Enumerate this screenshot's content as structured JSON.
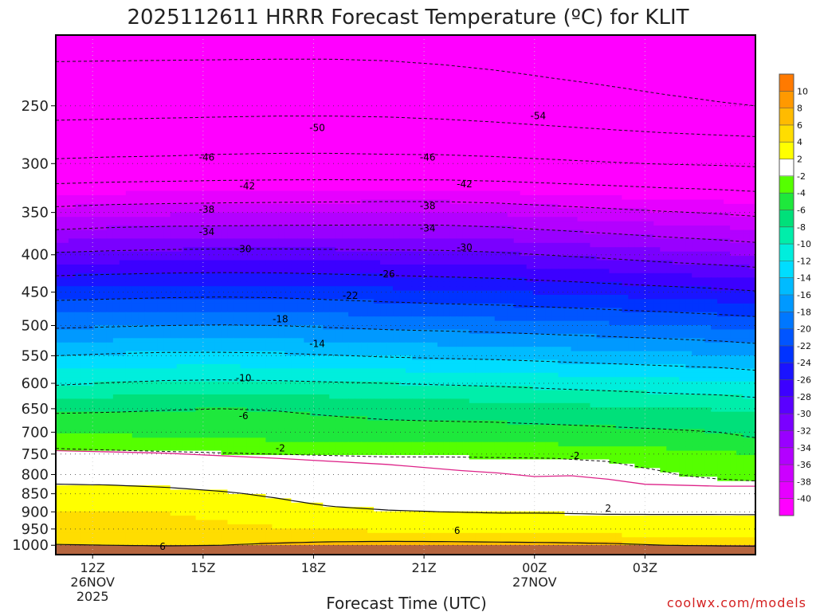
{
  "chart_data": {
    "type": "heatmap",
    "title": "2025112611 HRRR Forecast Temperature (ºC) for KLIT",
    "xlabel": "Forecast Time (UTC)",
    "ylabel": "",
    "credit": "coolwx.com/models",
    "y_scale": "log-pressure",
    "ylim": [
      1030,
      200
    ],
    "y_ticks": [
      250,
      300,
      350,
      400,
      450,
      500,
      550,
      600,
      650,
      700,
      750,
      800,
      850,
      900,
      950,
      1000
    ],
    "y_tick_labels": [
      "250",
      "300",
      "350",
      "400",
      "450",
      "500",
      "550",
      "600",
      "650",
      "700",
      "750",
      "800",
      "850",
      "900",
      "950",
      "1000"
    ],
    "xlim": [
      11,
      30
    ],
    "x_ticks": [
      {
        "t": 12,
        "label": "12Z",
        "sub": [
          "26NOV",
          "2025"
        ]
      },
      {
        "t": 15,
        "label": "15Z",
        "sub": []
      },
      {
        "t": 18,
        "label": "18Z",
        "sub": []
      },
      {
        "t": 21,
        "label": "21Z",
        "sub": []
      },
      {
        "t": 24,
        "label": "00Z",
        "sub": [
          "27NOV"
        ]
      },
      {
        "t": 27,
        "label": "03Z",
        "sub": []
      }
    ],
    "grid": true,
    "legend": "colorbar-right",
    "color_levels": [
      -40,
      -38,
      -36,
      -34,
      -32,
      -30,
      -28,
      -26,
      -24,
      -22,
      -20,
      -18,
      -16,
      -14,
      -12,
      -10,
      -8,
      -6,
      -4,
      -2,
      2,
      4,
      6,
      8,
      10
    ],
    "colorbar_labels": [
      "-40",
      "-38",
      "-36",
      "-34",
      "-32",
      "-30",
      "-28",
      "-26",
      "-24",
      "-22",
      "-20",
      "-18",
      "-16",
      "-14",
      "-12",
      "-10",
      "-8",
      "-6",
      "-4",
      "-2",
      "2",
      "4",
      "6",
      "8",
      "10"
    ],
    "colors": [
      "#ff00ff",
      "#e600ff",
      "#cc00ff",
      "#b300ff",
      "#9900ff",
      "#7a00ff",
      "#5a00ff",
      "#3c00ff",
      "#1a14ff",
      "#0033ff",
      "#0055ff",
      "#0077ff",
      "#0099ff",
      "#00bbff",
      "#00ddff",
      "#00eedd",
      "#00eeaa",
      "#00e07a",
      "#1ee83c",
      "#55ff00",
      "#ffffff",
      "#ffff00",
      "#ffdd00",
      "#ffbb00",
      "#ff9900",
      "#ff7a00"
    ],
    "times": [
      11,
      12.5,
      14,
      15.5,
      17,
      18.5,
      20,
      21.5,
      23,
      24.5,
      26,
      27.5,
      29,
      30
    ],
    "profiles": [
      {
        "p": 1030,
        "t": [
          14.5,
          13.5,
          12.5,
          12.5,
          13.0,
          14.0,
          14.0,
          14.0,
          13.5,
          12.5,
          12.0,
          12.0,
          11.5,
          11.0
        ]
      },
      {
        "p": 1000,
        "t": [
          6.2,
          6.0,
          5.5,
          6.0,
          6.5,
          7.0,
          7.2,
          7.2,
          7.0,
          6.8,
          6.5,
          6.0,
          5.6,
          5.4
        ]
      },
      {
        "p": 975,
        "t": [
          4.4,
          4.3,
          4.3,
          4.5,
          4.6,
          4.7,
          4.7,
          4.6,
          4.5,
          4.4,
          4.3,
          4.2,
          4.2,
          4.2
        ]
      },
      {
        "p": 950,
        "t": [
          4.2,
          4.2,
          4.2,
          4.2,
          4.1,
          4.0,
          3.7,
          3.5,
          3.3,
          3.2,
          3.2,
          3.1,
          3.1,
          3.0
        ]
      },
      {
        "p": 900,
        "t": [
          4.0,
          4.0,
          4.0,
          3.8,
          3.3,
          2.6,
          2.2,
          2.0,
          1.9,
          1.9,
          1.8,
          1.8,
          1.8,
          1.8
        ]
      },
      {
        "p": 850,
        "t": [
          3.0,
          3.0,
          2.8,
          2.3,
          1.6,
          0.6,
          0.2,
          0.0,
          0.0,
          0.0,
          0.0,
          0.0,
          0.0,
          0.0
        ]
      },
      {
        "p": 800,
        "t": [
          1.0,
          0.8,
          0.4,
          -0.1,
          -0.4,
          -0.6,
          -0.8,
          -0.8,
          -0.9,
          -1.0,
          -1.2,
          -1.8,
          -2.6,
          -3.0
        ]
      },
      {
        "p": 760,
        "t": [
          -0.5,
          -0.8,
          -1.0,
          -1.2,
          -1.4,
          -1.6,
          -1.8,
          -1.8,
          -1.9,
          -2.0,
          -2.2,
          -2.8,
          -3.2,
          -3.5
        ]
      },
      {
        "p": 725,
        "t": [
          -2.8,
          -3.0,
          -3.2,
          -3.4,
          -3.6,
          -3.8,
          -4.0,
          -4.0,
          -4.0,
          -4.1,
          -4.3,
          -4.6,
          -5.0,
          -5.5
        ]
      },
      {
        "p": 700,
        "t": [
          -4.0,
          -4.3,
          -4.6,
          -4.8,
          -5.0,
          -5.1,
          -5.2,
          -5.2,
          -5.2,
          -5.3,
          -5.5,
          -5.7,
          -6.0,
          -6.5
        ]
      },
      {
        "p": 650,
        "t": [
          -6.5,
          -6.3,
          -6.1,
          -6.0,
          -6.1,
          -6.4,
          -6.7,
          -6.9,
          -7.1,
          -7.4,
          -7.6,
          -7.9,
          -8.1,
          -8.4
        ]
      },
      {
        "p": 600,
        "t": [
          -10.3,
          -9.9,
          -9.6,
          -9.5,
          -9.6,
          -9.8,
          -10.0,
          -10.2,
          -10.4,
          -10.7,
          -11.0,
          -11.3,
          -11.6,
          -12.0
        ]
      },
      {
        "p": 550,
        "t": [
          -14.0,
          -13.7,
          -13.5,
          -13.5,
          -13.6,
          -13.9,
          -14.2,
          -14.4,
          -14.6,
          -14.9,
          -15.2,
          -15.5,
          -15.8,
          -16.2
        ]
      },
      {
        "p": 500,
        "t": [
          -18.4,
          -18.2,
          -18.0,
          -17.9,
          -18.0,
          -18.3,
          -18.6,
          -18.8,
          -19.0,
          -19.3,
          -19.6,
          -19.9,
          -20.3,
          -20.6
        ]
      },
      {
        "p": 450,
        "t": [
          -23.2,
          -23.0,
          -22.8,
          -22.7,
          -22.8,
          -23.1,
          -23.4,
          -23.7,
          -23.9,
          -24.2,
          -24.6,
          -25.0,
          -25.4,
          -25.8
        ]
      },
      {
        "p": 400,
        "t": [
          -29.6,
          -29.3,
          -29.1,
          -29.0,
          -29.0,
          -29.1,
          -29.2,
          -29.3,
          -29.6,
          -30.1,
          -30.6,
          -31.2,
          -31.7,
          -32.1
        ]
      },
      {
        "p": 350,
        "t": [
          -37.0,
          -36.6,
          -36.4,
          -36.3,
          -36.2,
          -36.1,
          -36.0,
          -36.0,
          -36.3,
          -36.8,
          -37.3,
          -37.8,
          -38.2,
          -38.6
        ]
      },
      {
        "p": 300,
        "t": [
          -45.5,
          -45.3,
          -45.2,
          -45.0,
          -44.9,
          -44.9,
          -45.0,
          -45.0,
          -45.2,
          -45.5,
          -45.8,
          -46.1,
          -46.3,
          -46.5
        ]
      },
      {
        "p": 250,
        "t": [
          -51.5,
          -51.4,
          -51.3,
          -51.2,
          -51.1,
          -51.1,
          -51.2,
          -51.5,
          -51.9,
          -52.4,
          -52.9,
          -53.4,
          -53.8,
          -54.0
        ]
      },
      {
        "p": 200,
        "t": [
          -55.5,
          -55.5,
          -55.5,
          -55.5,
          -55.5,
          -55.5,
          -55.6,
          -55.8,
          -56.1,
          -56.5,
          -56.8,
          -57.1,
          -57.3,
          -57.5
        ]
      }
    ],
    "contour_levels": [
      -54,
      -50,
      -46,
      -42,
      -38,
      -34,
      -30,
      -26,
      -22,
      -18,
      -14,
      -10,
      -6,
      -2,
      2,
      6
    ],
    "contour_labels": [
      {
        "value": -54,
        "text": "-54",
        "t": 24.1,
        "p": 258
      },
      {
        "value": -50,
        "text": "-50",
        "t": 18.1,
        "p": 268
      },
      {
        "value": -46,
        "text": "-46",
        "t": 15.1,
        "p": 294
      },
      {
        "value": -46,
        "text": "-46",
        "t": 21.1,
        "p": 294
      },
      {
        "value": -42,
        "text": "-42",
        "t": 16.2,
        "p": 322
      },
      {
        "value": -42,
        "text": "-42",
        "t": 22.1,
        "p": 320
      },
      {
        "value": -38,
        "text": "-38",
        "t": 15.1,
        "p": 347
      },
      {
        "value": -38,
        "text": "-38",
        "t": 21.1,
        "p": 343
      },
      {
        "value": -34,
        "text": "-34",
        "t": 15.1,
        "p": 372
      },
      {
        "value": -34,
        "text": "-34",
        "t": 21.1,
        "p": 368
      },
      {
        "value": -30,
        "text": "-30",
        "t": 16.1,
        "p": 393
      },
      {
        "value": -30,
        "text": "-30",
        "t": 22.1,
        "p": 391
      },
      {
        "value": -26,
        "text": "-26",
        "t": 20.0,
        "p": 425
      },
      {
        "value": -22,
        "text": "-22",
        "t": 19.0,
        "p": 455
      },
      {
        "value": -18,
        "text": "-18",
        "t": 17.1,
        "p": 490
      },
      {
        "value": -14,
        "text": "-14",
        "t": 18.1,
        "p": 530
      },
      {
        "value": -10,
        "text": "-10",
        "t": 16.1,
        "p": 590
      },
      {
        "value": -6,
        "text": "-6",
        "t": 16.1,
        "p": 665
      },
      {
        "value": -2,
        "text": "-2",
        "t": 17.1,
        "p": 736
      },
      {
        "value": -2,
        "text": "-2",
        "t": 25.1,
        "p": 754
      },
      {
        "value": 2,
        "text": "2",
        "t": 26.0,
        "p": 890
      },
      {
        "value": 6,
        "text": "6",
        "t": 21.9,
        "p": 955
      },
      {
        "value": 6,
        "text": "6",
        "t": 13.9,
        "p": 1005
      }
    ],
    "reference_line": {
      "color": "#dd2288",
      "points": [
        [
          11,
          742
        ],
        [
          14,
          748
        ],
        [
          17,
          760
        ],
        [
          20,
          775
        ],
        [
          22,
          790
        ],
        [
          23,
          796
        ],
        [
          24,
          805
        ],
        [
          25,
          803
        ],
        [
          26,
          812
        ],
        [
          27,
          825
        ],
        [
          29,
          830
        ],
        [
          30,
          830
        ]
      ]
    },
    "ground_color": "#b5653f"
  }
}
